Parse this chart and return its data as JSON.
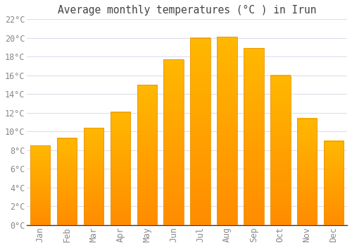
{
  "title": "Average monthly temperatures (°C ) in Irun",
  "months": [
    "Jan",
    "Feb",
    "Mar",
    "Apr",
    "May",
    "Jun",
    "Jul",
    "Aug",
    "Sep",
    "Oct",
    "Nov",
    "Dec"
  ],
  "values": [
    8.5,
    9.3,
    10.4,
    12.1,
    15.0,
    17.7,
    20.0,
    20.1,
    18.9,
    16.0,
    11.4,
    9.0
  ],
  "bar_color_top": "#FFB800",
  "bar_color_bottom": "#FF8C00",
  "bar_edge_color": "#E8960A",
  "background_color": "#ffffff",
  "grid_color": "#d8dce8",
  "text_color": "#888888",
  "title_color": "#444444",
  "ylim": [
    0,
    22
  ],
  "ytick_step": 2,
  "title_fontsize": 10.5,
  "tick_fontsize": 8.5,
  "font_family": "monospace",
  "bar_width": 0.75
}
